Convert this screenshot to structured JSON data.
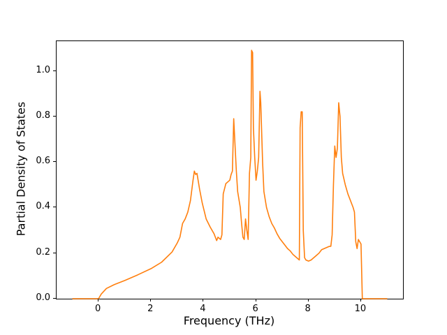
{
  "figure": {
    "background": "#ffffff",
    "spine_color": "#000000"
  },
  "chart_data": {
    "type": "line",
    "title": "",
    "xlabel": "Frequency (THz)",
    "ylabel": "Partial Density of States",
    "xlim": [
      -1.6,
      11.6
    ],
    "ylim": [
      0,
      1.13
    ],
    "grid": false,
    "legend": null,
    "x_ticks": {
      "values": [
        0,
        2,
        4,
        6,
        8,
        10
      ],
      "labels": [
        "0",
        "2",
        "4",
        "6",
        "8",
        "10"
      ]
    },
    "y_ticks": {
      "values": [
        0.0,
        0.2,
        0.4,
        0.6,
        0.8,
        1.0
      ],
      "labels": [
        "0.0",
        "0.2",
        "0.4",
        "0.6",
        "0.8",
        "1.0"
      ]
    },
    "series": [
      {
        "color": "#ff7f0e",
        "x": [
          -1.0,
          -0.5,
          0.0,
          0.1,
          0.3,
          0.6,
          1.0,
          1.5,
          2.0,
          2.4,
          2.8,
          3.0,
          3.1,
          3.15,
          3.2,
          3.3,
          3.4,
          3.5,
          3.6,
          3.65,
          3.7,
          3.75,
          3.85,
          3.95,
          4.1,
          4.25,
          4.4,
          4.5,
          4.55,
          4.65,
          4.7,
          4.75,
          4.85,
          4.95,
          5.0,
          5.05,
          5.1,
          5.15,
          5.18,
          5.25,
          5.3,
          5.4,
          5.45,
          5.5,
          5.55,
          5.6,
          5.65,
          5.7,
          5.75,
          5.8,
          5.83,
          5.87,
          5.9,
          5.95,
          6.0,
          6.05,
          6.1,
          6.15,
          6.18,
          6.25,
          6.3,
          6.4,
          6.5,
          6.6,
          6.7,
          6.8,
          6.9,
          7.0,
          7.1,
          7.2,
          7.3,
          7.4,
          7.5,
          7.6,
          7.65,
          7.68,
          7.72,
          7.76,
          7.8,
          7.85,
          7.9,
          8.0,
          8.1,
          8.2,
          8.3,
          8.4,
          8.5,
          8.6,
          8.7,
          8.8,
          8.85,
          8.9,
          8.95,
          9.0,
          9.05,
          9.1,
          9.15,
          9.2,
          9.25,
          9.3,
          9.4,
          9.5,
          9.6,
          9.7,
          9.75,
          9.8,
          9.85,
          9.9,
          9.95,
          10.0,
          10.05,
          10.5,
          11.0
        ],
        "y": [
          0,
          0,
          0,
          0.02,
          0.045,
          0.062,
          0.08,
          0.105,
          0.132,
          0.16,
          0.205,
          0.245,
          0.27,
          0.3,
          0.33,
          0.35,
          0.38,
          0.43,
          0.52,
          0.56,
          0.545,
          0.55,
          0.48,
          0.42,
          0.35,
          0.315,
          0.285,
          0.255,
          0.27,
          0.26,
          0.28,
          0.46,
          0.505,
          0.515,
          0.52,
          0.545,
          0.56,
          0.79,
          0.72,
          0.56,
          0.47,
          0.4,
          0.33,
          0.27,
          0.26,
          0.35,
          0.3,
          0.26,
          0.55,
          0.62,
          1.09,
          1.08,
          0.75,
          0.62,
          0.52,
          0.56,
          0.62,
          0.91,
          0.86,
          0.6,
          0.47,
          0.4,
          0.36,
          0.33,
          0.31,
          0.285,
          0.265,
          0.25,
          0.235,
          0.22,
          0.21,
          0.195,
          0.185,
          0.175,
          0.17,
          0.75,
          0.82,
          0.82,
          0.3,
          0.18,
          0.17,
          0.165,
          0.17,
          0.18,
          0.19,
          0.2,
          0.215,
          0.22,
          0.225,
          0.23,
          0.23,
          0.28,
          0.5,
          0.67,
          0.62,
          0.66,
          0.86,
          0.8,
          0.62,
          0.55,
          0.5,
          0.46,
          0.43,
          0.4,
          0.38,
          0.25,
          0.22,
          0.26,
          0.25,
          0.24,
          0.0,
          0.0,
          0.0
        ]
      }
    ]
  }
}
